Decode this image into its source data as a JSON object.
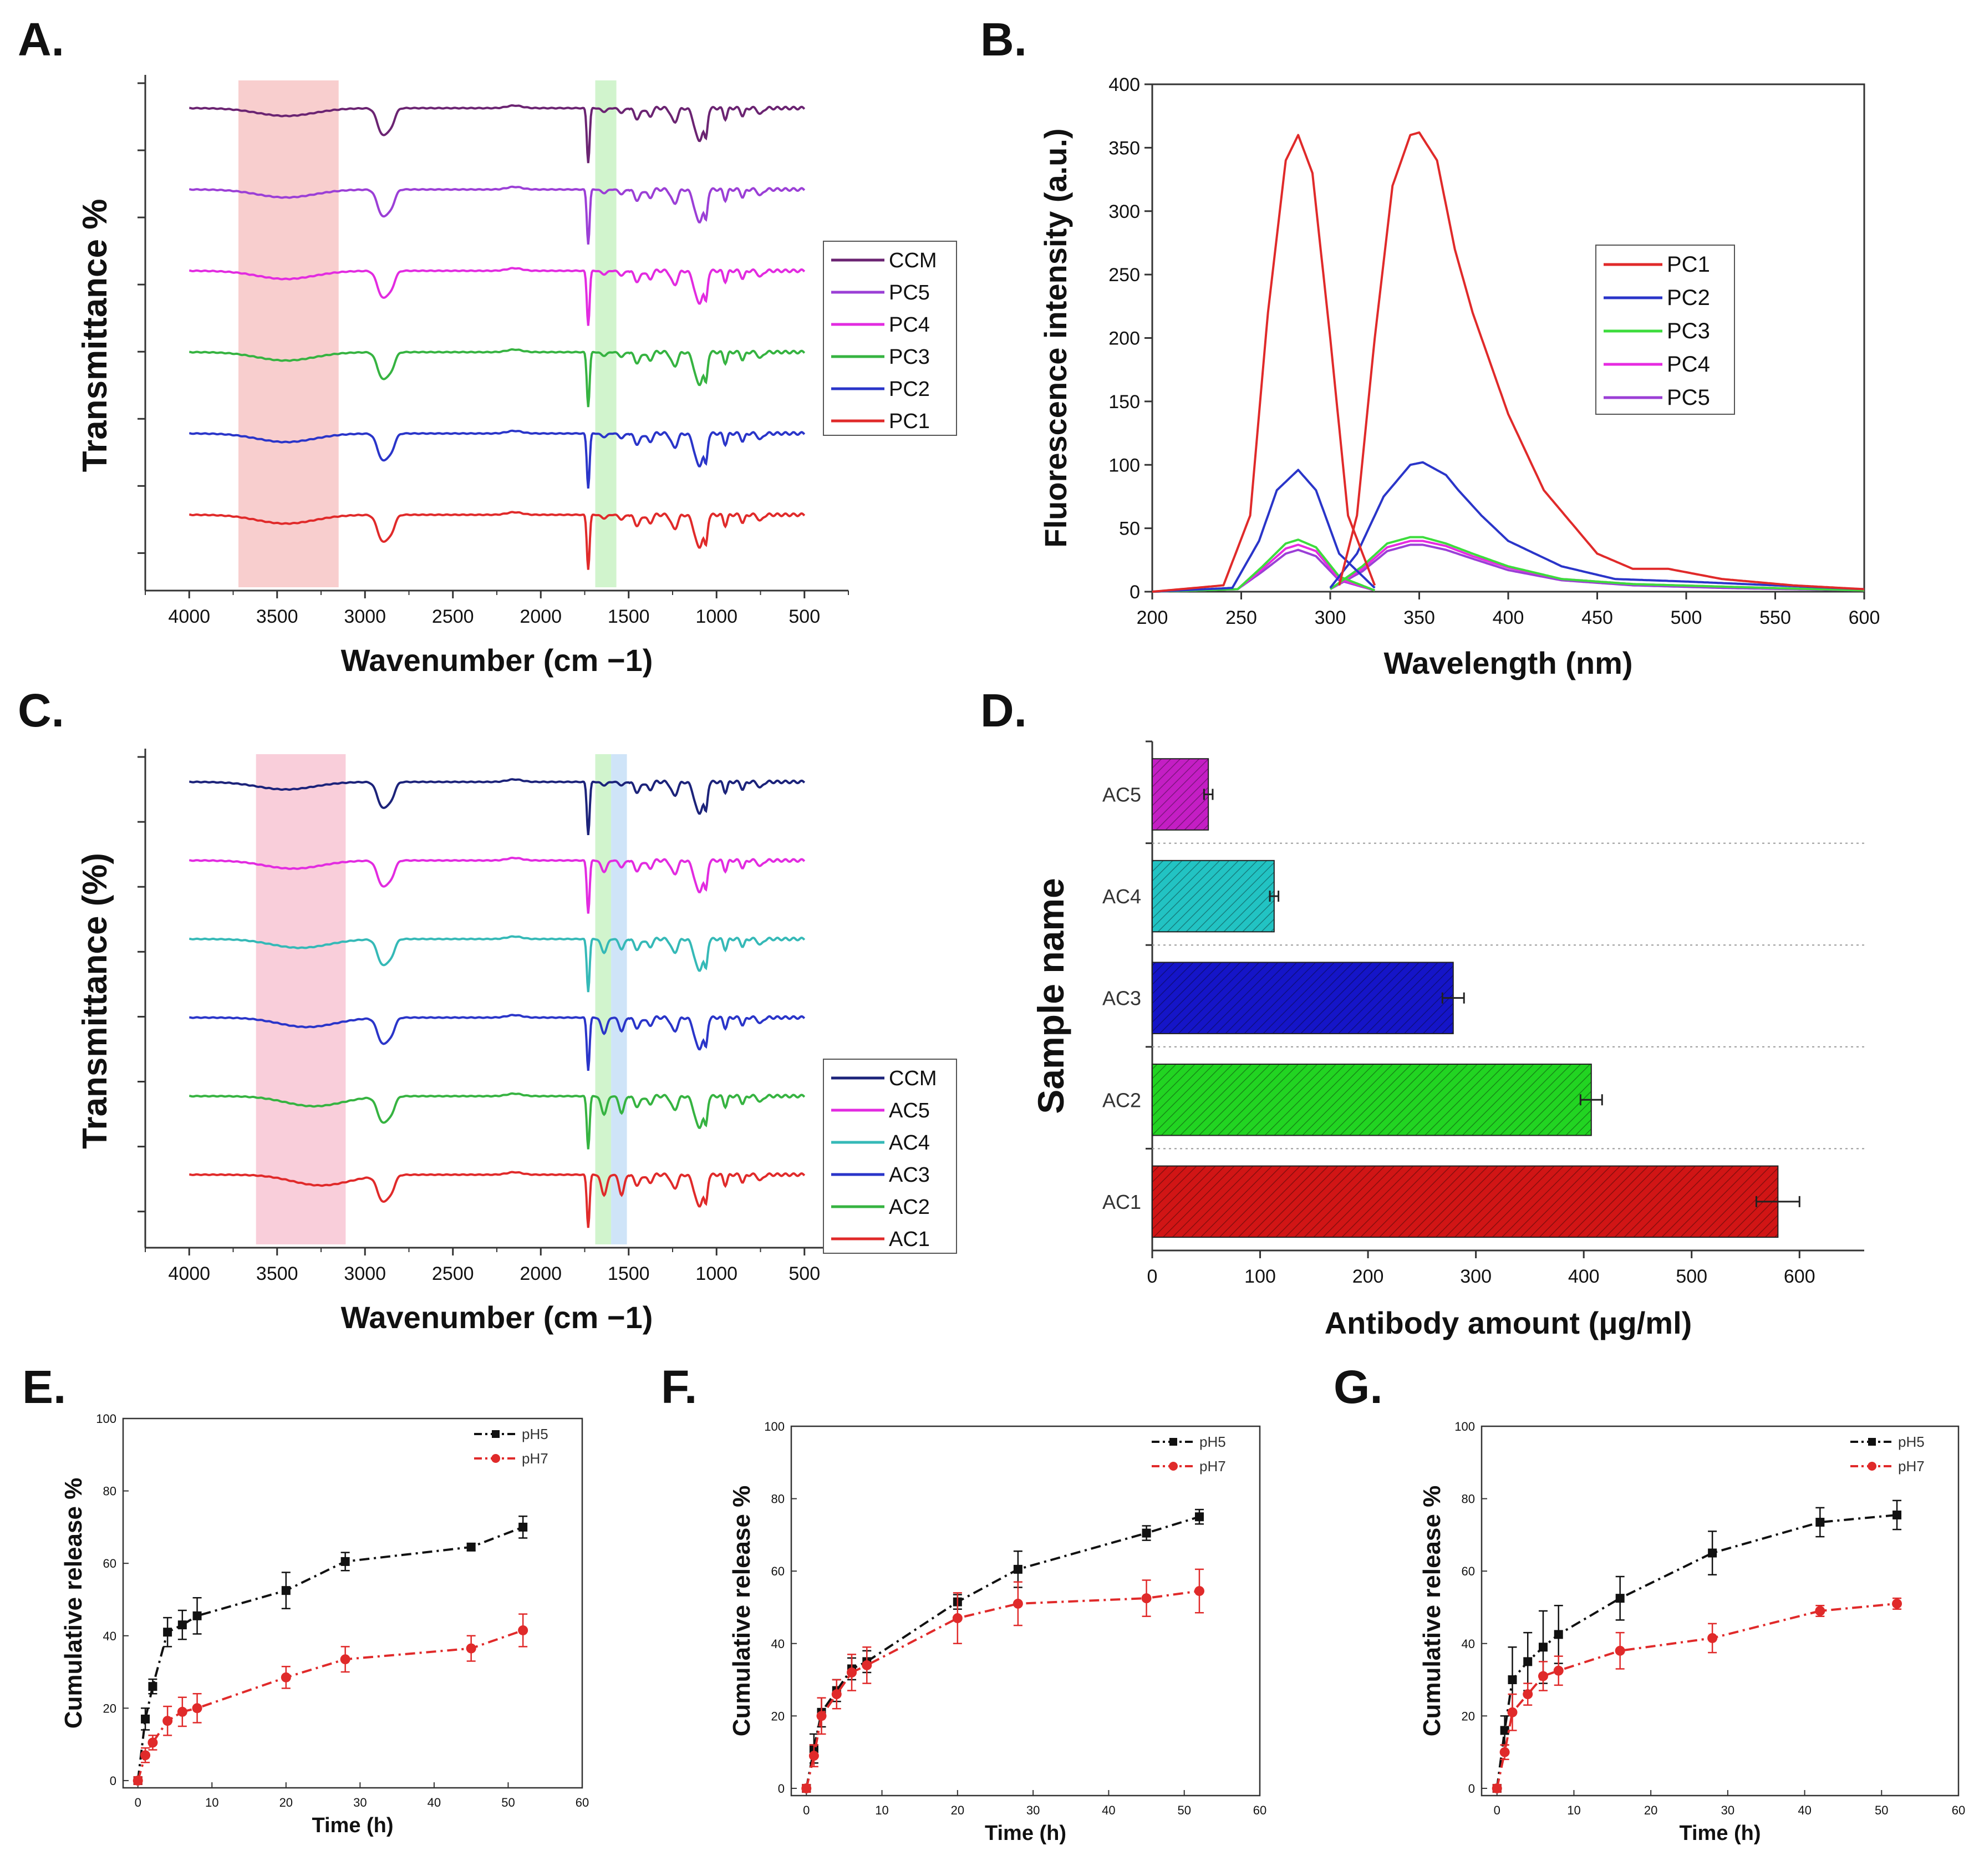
{
  "chart_data": [
    {
      "panel": "A.",
      "type": "line",
      "title": "",
      "xlabel": "Wavenumber (cm −1)",
      "ylabel": "Transmittance %",
      "xlim": [
        4250,
        250
      ],
      "xticks": [
        4000,
        3500,
        3000,
        2500,
        2000,
        1500,
        1000,
        500
      ],
      "highlight_bands": [
        {
          "from": 3720,
          "to": 3150,
          "color": "#f7c6c6"
        },
        {
          "from": 1690,
          "to": 1570,
          "color": "#c9f2c4"
        }
      ],
      "legend": [
        "CCM",
        "PC5",
        "PC4",
        "PC3",
        "PC2",
        "PC1"
      ],
      "legend_position": "right",
      "series": [
        {
          "name": "CCM",
          "color": "#6b2472"
        },
        {
          "name": "PC5",
          "color": "#9b3fd6"
        },
        {
          "name": "PC4",
          "color": "#e22be0"
        },
        {
          "name": "PC3",
          "color": "#36b341"
        },
        {
          "name": "PC2",
          "color": "#2a35c9"
        },
        {
          "name": "PC1",
          "color": "#e02a2a"
        }
      ]
    },
    {
      "panel": "B.",
      "type": "line",
      "title": "",
      "xlabel": "Wavelength (nm)",
      "ylabel": "Fluorescence intensity (a.u.)",
      "xlim": [
        200,
        600
      ],
      "ylim": [
        0,
        400
      ],
      "xticks": [
        200,
        250,
        300,
        350,
        400,
        450,
        500,
        550,
        600
      ],
      "yticks": [
        0,
        50,
        100,
        150,
        200,
        250,
        300,
        350,
        400
      ],
      "legend": [
        "PC1",
        "PC2",
        "PC3",
        "PC4",
        "PC5"
      ],
      "legend_position": "center-right",
      "series": [
        {
          "name": "PC1",
          "color": "#e02a2a",
          "excitation": {
            "x": [
              200,
              240,
              255,
              265,
              275,
              282,
              290,
              300,
              310,
              325
            ],
            "y": [
              0,
              5,
              60,
              220,
              340,
              360,
              330,
              200,
              60,
              5
            ]
          },
          "emission": {
            "x": [
              305,
              315,
              325,
              335,
              345,
              350,
              360,
              370,
              380,
              400,
              420,
              450,
              470,
              490,
              520,
              560,
              600
            ],
            "y": [
              5,
              60,
              200,
              320,
              360,
              362,
              340,
              270,
              220,
              140,
              80,
              30,
              18,
              18,
              10,
              5,
              2
            ]
          }
        },
        {
          "name": "PC2",
          "color": "#2a35c9",
          "excitation": {
            "x": [
              200,
              245,
              260,
              270,
              282,
              292,
              305,
              325
            ],
            "y": [
              0,
              3,
              40,
              80,
              96,
              80,
              30,
              3
            ]
          },
          "emission": {
            "x": [
              300,
              315,
              330,
              345,
              352,
              365,
              372,
              385,
              400,
              430,
              460,
              500,
              550,
              600
            ],
            "y": [
              3,
              30,
              75,
              100,
              102,
              92,
              80,
              60,
              40,
              20,
              10,
              8,
              5,
              2
            ]
          }
        },
        {
          "name": "PC3",
          "color": "#3ddc3d",
          "excitation": {
            "x": [
              200,
              248,
              262,
              275,
              282,
              292,
              305,
              325
            ],
            "y": [
              0,
              2,
              20,
              38,
              41,
              35,
              12,
              1
            ]
          },
          "emission": {
            "x": [
              300,
              318,
              332,
              345,
              352,
              365,
              380,
              400,
              430,
              470,
              520,
              600
            ],
            "y": [
              2,
              20,
              38,
              43,
              43,
              38,
              30,
              20,
              10,
              6,
              4,
              1
            ]
          }
        },
        {
          "name": "PC4",
          "color": "#e62be0",
          "excitation": {
            "x": [
              200,
              248,
              262,
              275,
              282,
              292,
              305,
              325
            ],
            "y": [
              0,
              2,
              18,
              34,
              37,
              32,
              10,
              1
            ]
          },
          "emission": {
            "x": [
              300,
              318,
              332,
              345,
              352,
              365,
              380,
              400,
              430,
              470,
              520,
              600
            ],
            "y": [
              2,
              18,
              35,
              40,
              40,
              36,
              28,
              19,
              10,
              6,
              4,
              1
            ]
          }
        },
        {
          "name": "PC5",
          "color": "#9b3fd6",
          "excitation": {
            "x": [
              200,
              248,
              262,
              275,
              282,
              292,
              305,
              325
            ],
            "y": [
              0,
              2,
              16,
              30,
              33,
              28,
              9,
              1
            ]
          },
          "emission": {
            "x": [
              300,
              318,
              332,
              345,
              352,
              365,
              380,
              400,
              430,
              470,
              520,
              600
            ],
            "y": [
              2,
              16,
              32,
              37,
              37,
              33,
              26,
              17,
              9,
              5,
              3,
              1
            ]
          }
        }
      ]
    },
    {
      "panel": "C.",
      "type": "line",
      "title": "",
      "xlabel": "Wavenumber (cm −1)",
      "ylabel": "Transmittance (%)",
      "xlim": [
        4250,
        250
      ],
      "xticks": [
        4000,
        3500,
        3000,
        2500,
        2000,
        1500,
        1000,
        500
      ],
      "highlight_bands": [
        {
          "from": 3620,
          "to": 3110,
          "color": "#f8c6d4"
        },
        {
          "from": 1690,
          "to": 1600,
          "color": "#c9f2c4"
        },
        {
          "from": 1600,
          "to": 1510,
          "color": "#c7dff7"
        }
      ],
      "legend": [
        "CCM",
        "AC5",
        "AC4",
        "AC3",
        "AC2",
        "AC1"
      ],
      "legend_position": "right",
      "series": [
        {
          "name": "CCM",
          "color": "#1c237a"
        },
        {
          "name": "AC5",
          "color": "#e22be0"
        },
        {
          "name": "AC4",
          "color": "#35b9b7"
        },
        {
          "name": "AC3",
          "color": "#2a35c9"
        },
        {
          "name": "AC2",
          "color": "#36b341"
        },
        {
          "name": "AC1",
          "color": "#e02a2a"
        }
      ]
    },
    {
      "panel": "D.",
      "type": "bar",
      "orientation": "horizontal",
      "title": "",
      "xlabel": "Antibody amount (μg/ml)",
      "ylabel": "Sample name",
      "xlim": [
        0,
        660
      ],
      "xticks": [
        0,
        100,
        200,
        300,
        400,
        500,
        600
      ],
      "categories": [
        "AC5",
        "AC4",
        "AC3",
        "AC2",
        "AC1"
      ],
      "values": [
        52,
        113,
        279,
        407,
        580
      ],
      "errors": [
        4,
        4,
        10,
        10,
        20
      ],
      "colors": [
        "#c41ec4",
        "#22c3c3",
        "#1515c8",
        "#22d422",
        "#d11515"
      ]
    },
    {
      "panel": "E.",
      "type": "line",
      "title": "",
      "xlabel": "Time (h)",
      "ylabel": "Cumulative release %",
      "xlim": [
        -2,
        60
      ],
      "ylim": [
        -2,
        100
      ],
      "xticks": [
        0,
        10,
        20,
        30,
        40,
        50,
        60
      ],
      "yticks": [
        0,
        20,
        40,
        60,
        80,
        100
      ],
      "legend_position": "top-right",
      "series": [
        {
          "name": "pH5",
          "color": "#111111",
          "marker": "square",
          "x": [
            0,
            1,
            2,
            4,
            6,
            8,
            20,
            28,
            45,
            52
          ],
          "y": [
            0,
            17,
            26,
            41,
            43,
            45.5,
            52.5,
            60.5,
            64.5,
            70
          ],
          "err": [
            1,
            3,
            2,
            4,
            4,
            5,
            5,
            2.5,
            1,
            3
          ]
        },
        {
          "name": "pH7",
          "color": "#e02a2a",
          "marker": "circle",
          "x": [
            0,
            1,
            2,
            4,
            6,
            8,
            20,
            28,
            45,
            52
          ],
          "y": [
            0,
            7,
            10.5,
            16.5,
            19,
            20,
            28.5,
            33.5,
            36.5,
            41.5
          ],
          "err": [
            1,
            2,
            2,
            4,
            4,
            4,
            3,
            3.5,
            3.5,
            4.5
          ]
        }
      ]
    },
    {
      "panel": "F.",
      "type": "line",
      "title": "",
      "xlabel": "Time (h)",
      "ylabel": "Cumulative release %",
      "xlim": [
        -2,
        60
      ],
      "ylim": [
        -2,
        100
      ],
      "xticks": [
        0,
        10,
        20,
        30,
        40,
        50,
        60
      ],
      "yticks": [
        0,
        20,
        40,
        60,
        80,
        100
      ],
      "legend_position": "top-right",
      "series": [
        {
          "name": "pH5",
          "color": "#111111",
          "marker": "square",
          "x": [
            0,
            1,
            2,
            4,
            6,
            8,
            20,
            28,
            45,
            52
          ],
          "y": [
            0,
            11,
            21,
            27,
            33,
            35,
            51.5,
            60.5,
            70.5,
            75
          ],
          "err": [
            1,
            4,
            4,
            3,
            3,
            3,
            2,
            5,
            2,
            2
          ]
        },
        {
          "name": "pH7",
          "color": "#e02a2a",
          "marker": "circle",
          "x": [
            0,
            1,
            2,
            4,
            6,
            8,
            20,
            28,
            45,
            52
          ],
          "y": [
            0,
            9,
            20,
            26,
            32,
            34,
            47,
            51,
            52.5,
            54.5
          ],
          "err": [
            1,
            3,
            5,
            4,
            5,
            5,
            7,
            6,
            5,
            6
          ]
        }
      ]
    },
    {
      "panel": "G.",
      "type": "line",
      "title": "",
      "xlabel": "Time (h)",
      "ylabel": "Cumulative release %",
      "xlim": [
        -2,
        60
      ],
      "ylim": [
        -2,
        100
      ],
      "xticks": [
        0,
        10,
        20,
        30,
        40,
        50,
        60
      ],
      "yticks": [
        0,
        20,
        40,
        60,
        80,
        100
      ],
      "legend_position": "top-right",
      "series": [
        {
          "name": "pH5",
          "color": "#111111",
          "marker": "square",
          "x": [
            0,
            1,
            2,
            4,
            6,
            8,
            16,
            28,
            42,
            52
          ],
          "y": [
            0,
            16,
            30,
            35,
            39,
            42.5,
            52.5,
            65,
            73.5,
            75.5
          ],
          "err": [
            1,
            4,
            9,
            8,
            10,
            8,
            6,
            6,
            4,
            4
          ]
        },
        {
          "name": "pH7",
          "color": "#e02a2a",
          "marker": "circle",
          "x": [
            0,
            1,
            2,
            4,
            6,
            8,
            16,
            28,
            42,
            52
          ],
          "y": [
            0,
            10,
            21,
            26,
            31,
            32.5,
            38,
            41.5,
            49,
            51
          ],
          "err": [
            1,
            2,
            5,
            3,
            4,
            4,
            5,
            4,
            1.5,
            1.5
          ]
        }
      ]
    }
  ]
}
